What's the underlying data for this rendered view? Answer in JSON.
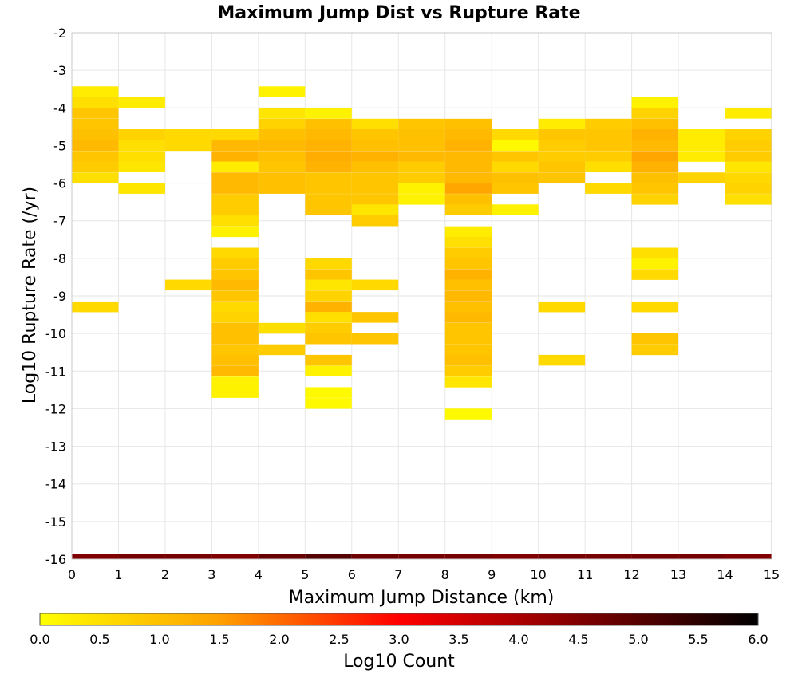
{
  "chart_data": {
    "type": "heatmap",
    "title": "Maximum Jump Dist vs Rupture Rate",
    "xlabel": "Maximum Jump Distance (km)",
    "ylabel": "Log10 Rupture Rate (/yr)",
    "xlim": [
      0,
      15
    ],
    "ylim": [
      -16,
      -2
    ],
    "x_ticks": [
      "0",
      "1",
      "2",
      "3",
      "4",
      "5",
      "6",
      "7",
      "8",
      "9",
      "10",
      "11",
      "12",
      "13",
      "14",
      "15"
    ],
    "y_ticks": [
      "-2",
      "-3",
      "-4",
      "-5",
      "-6",
      "-7",
      "-8",
      "-9",
      "-10",
      "-11",
      "-12",
      "-13",
      "-14",
      "-15",
      "-16"
    ],
    "bin_width_x": 1,
    "bin_height_y": 0.286,
    "grid": true,
    "colorbar": {
      "label": "Log10 Count",
      "min": 0.0,
      "max": 6.0,
      "ticks": [
        "0.0",
        "0.5",
        "1.0",
        "1.5",
        "2.0",
        "2.5",
        "3.0",
        "3.5",
        "4.0",
        "4.5",
        "5.0",
        "5.5",
        "6.0"
      ],
      "colors": [
        "#ffff00",
        "#ffa000",
        "#ff0000",
        "#800000",
        "#000000"
      ]
    },
    "columns": [
      {
        "x": 0,
        "cells": [
          [
            -3.57,
            0.3
          ],
          [
            -3.86,
            0.5
          ],
          [
            -4.14,
            0.9
          ],
          [
            -4.43,
            0.9
          ],
          [
            -4.71,
            1.0
          ],
          [
            -5.0,
            1.1
          ],
          [
            -5.29,
            0.9
          ],
          [
            -5.57,
            0.8
          ],
          [
            -5.86,
            0.5
          ],
          [
            -9.29,
            0.6
          ],
          [
            -16.0,
            4.5
          ]
        ]
      },
      {
        "x": 1,
        "cells": [
          [
            -3.86,
            0.3
          ],
          [
            -4.71,
            0.7
          ],
          [
            -5.0,
            0.5
          ],
          [
            -5.29,
            0.5
          ],
          [
            -5.57,
            0.4
          ],
          [
            -6.14,
            0.4
          ],
          [
            -16.0,
            4.6
          ]
        ]
      },
      {
        "x": 2,
        "cells": [
          [
            -4.71,
            0.6
          ],
          [
            -5.0,
            0.6
          ],
          [
            -8.71,
            0.6
          ],
          [
            -16.0,
            4.6
          ]
        ]
      },
      {
        "x": 3,
        "cells": [
          [
            -4.71,
            0.6
          ],
          [
            -5.0,
            1.1
          ],
          [
            -5.29,
            1.2
          ],
          [
            -5.57,
            0.3
          ],
          [
            -5.86,
            1.1
          ],
          [
            -6.14,
            1.1
          ],
          [
            -6.43,
            0.8
          ],
          [
            -6.71,
            0.8
          ],
          [
            -7.0,
            0.5
          ],
          [
            -7.29,
            0.2
          ],
          [
            -7.86,
            0.6
          ],
          [
            -8.14,
            0.8
          ],
          [
            -8.43,
            0.9
          ],
          [
            -8.71,
            1.1
          ],
          [
            -9.0,
            0.9
          ],
          [
            -9.29,
            0.6
          ],
          [
            -9.57,
            0.7
          ],
          [
            -9.86,
            1.0
          ],
          [
            -10.14,
            1.0
          ],
          [
            -10.43,
            0.9
          ],
          [
            -10.71,
            1.0
          ],
          [
            -11.0,
            1.1
          ],
          [
            -11.29,
            0.2
          ],
          [
            -11.57,
            0.2
          ],
          [
            -16.0,
            4.5
          ]
        ]
      },
      {
        "x": 4,
        "cells": [
          [
            -3.57,
            0.2
          ],
          [
            -4.14,
            0.4
          ],
          [
            -4.43,
            0.7
          ],
          [
            -4.71,
            1.0
          ],
          [
            -5.0,
            1.1
          ],
          [
            -5.29,
            1.0
          ],
          [
            -5.57,
            0.9
          ],
          [
            -5.86,
            1.0
          ],
          [
            -6.14,
            1.0
          ],
          [
            -9.86,
            0.5
          ],
          [
            -10.43,
            0.8
          ],
          [
            -16.0,
            4.8
          ]
        ]
      },
      {
        "x": 5,
        "cells": [
          [
            -4.14,
            0.2
          ],
          [
            -4.43,
            1.0
          ],
          [
            -4.71,
            1.1
          ],
          [
            -5.0,
            1.2
          ],
          [
            -5.29,
            1.3
          ],
          [
            -5.57,
            1.2
          ],
          [
            -5.86,
            0.9
          ],
          [
            -6.14,
            0.9
          ],
          [
            -6.43,
            0.9
          ],
          [
            -6.71,
            0.9
          ],
          [
            -8.14,
            0.6
          ],
          [
            -8.43,
            0.9
          ],
          [
            -8.71,
            0.4
          ],
          [
            -9.0,
            0.7
          ],
          [
            -9.29,
            1.2
          ],
          [
            -9.57,
            0.5
          ],
          [
            -9.86,
            0.8
          ],
          [
            -10.14,
            0.9
          ],
          [
            -10.71,
            0.9
          ],
          [
            -11.0,
            0.2
          ],
          [
            -11.57,
            0.1
          ],
          [
            -11.86,
            0.1
          ],
          [
            -16.0,
            5.0
          ]
        ]
      },
      {
        "x": 6,
        "cells": [
          [
            -4.43,
            0.5
          ],
          [
            -4.71,
            0.9
          ],
          [
            -5.0,
            1.0
          ],
          [
            -5.29,
            1.2
          ],
          [
            -5.57,
            1.0
          ],
          [
            -5.86,
            0.9
          ],
          [
            -6.14,
            0.9
          ],
          [
            -6.43,
            0.9
          ],
          [
            -6.71,
            0.4
          ],
          [
            -7.0,
            0.8
          ],
          [
            -8.71,
            0.6
          ],
          [
            -9.57,
            0.9
          ],
          [
            -10.14,
            0.9
          ],
          [
            -16.0,
            4.7
          ]
        ]
      },
      {
        "x": 7,
        "cells": [
          [
            -4.43,
            0.9
          ],
          [
            -4.71,
            1.0
          ],
          [
            -5.0,
            1.0
          ],
          [
            -5.29,
            1.1
          ],
          [
            -5.57,
            0.8
          ],
          [
            -5.86,
            0.8
          ],
          [
            -6.14,
            0.2
          ],
          [
            -6.43,
            0.2
          ],
          [
            -16.0,
            4.6
          ]
        ]
      },
      {
        "x": 8,
        "cells": [
          [
            -4.43,
            1.0
          ],
          [
            -4.71,
            1.1
          ],
          [
            -5.0,
            1.2
          ],
          [
            -5.29,
            1.1
          ],
          [
            -5.57,
            1.1
          ],
          [
            -5.86,
            1.1
          ],
          [
            -6.14,
            1.4
          ],
          [
            -6.43,
            1.0
          ],
          [
            -6.71,
            0.8
          ],
          [
            -7.29,
            0.3
          ],
          [
            -7.57,
            0.5
          ],
          [
            -7.86,
            0.8
          ],
          [
            -8.14,
            0.9
          ],
          [
            -8.43,
            1.2
          ],
          [
            -8.71,
            1.0
          ],
          [
            -9.0,
            1.1
          ],
          [
            -9.29,
            1.0
          ],
          [
            -9.57,
            1.1
          ],
          [
            -9.86,
            0.9
          ],
          [
            -10.14,
            0.9
          ],
          [
            -10.43,
            0.9
          ],
          [
            -10.71,
            1.0
          ],
          [
            -11.0,
            0.8
          ],
          [
            -11.29,
            0.4
          ],
          [
            -12.14,
            0.1
          ],
          [
            -16.0,
            4.6
          ]
        ]
      },
      {
        "x": 9,
        "cells": [
          [
            -4.71,
            0.6
          ],
          [
            -5.0,
            0.1
          ],
          [
            -5.29,
            0.9
          ],
          [
            -5.57,
            0.6
          ],
          [
            -5.86,
            1.0
          ],
          [
            -6.14,
            0.9
          ],
          [
            -6.71,
            0.2
          ],
          [
            -16.0,
            4.5
          ]
        ]
      },
      {
        "x": 10,
        "cells": [
          [
            -4.43,
            0.3
          ],
          [
            -4.71,
            0.9
          ],
          [
            -5.0,
            0.8
          ],
          [
            -5.29,
            0.8
          ],
          [
            -5.57,
            0.9
          ],
          [
            -5.86,
            0.9
          ],
          [
            -9.29,
            0.6
          ],
          [
            -10.71,
            0.6
          ],
          [
            -16.0,
            4.6
          ]
        ]
      },
      {
        "x": 11,
        "cells": [
          [
            -4.43,
            0.8
          ],
          [
            -4.71,
            0.9
          ],
          [
            -5.0,
            0.9
          ],
          [
            -5.29,
            0.8
          ],
          [
            -5.57,
            0.5
          ],
          [
            -6.14,
            0.6
          ],
          [
            -16.0,
            4.6
          ]
        ]
      },
      {
        "x": 12,
        "cells": [
          [
            -3.86,
            0.2
          ],
          [
            -4.14,
            0.7
          ],
          [
            -4.43,
            1.0
          ],
          [
            -4.71,
            1.2
          ],
          [
            -5.0,
            1.1
          ],
          [
            -5.29,
            1.4
          ],
          [
            -5.57,
            1.2
          ],
          [
            -5.86,
            1.0
          ],
          [
            -6.14,
            0.9
          ],
          [
            -6.43,
            0.7
          ],
          [
            -7.86,
            0.5
          ],
          [
            -8.14,
            0.2
          ],
          [
            -8.43,
            0.6
          ],
          [
            -9.29,
            0.6
          ],
          [
            -10.14,
            0.9
          ],
          [
            -10.43,
            0.8
          ],
          [
            -16.0,
            4.6
          ]
        ]
      },
      {
        "x": 13,
        "cells": [
          [
            -4.71,
            0.3
          ],
          [
            -5.0,
            0.3
          ],
          [
            -5.29,
            0.3
          ],
          [
            -5.86,
            0.7
          ],
          [
            -16.0,
            4.6
          ]
        ]
      },
      {
        "x": 14,
        "cells": [
          [
            -4.14,
            0.3
          ],
          [
            -4.71,
            0.7
          ],
          [
            -5.0,
            0.8
          ],
          [
            -5.29,
            0.8
          ],
          [
            -5.57,
            0.4
          ],
          [
            -5.86,
            0.6
          ],
          [
            -6.14,
            0.7
          ],
          [
            -6.43,
            0.5
          ],
          [
            -16.0,
            4.5
          ]
        ]
      }
    ]
  }
}
